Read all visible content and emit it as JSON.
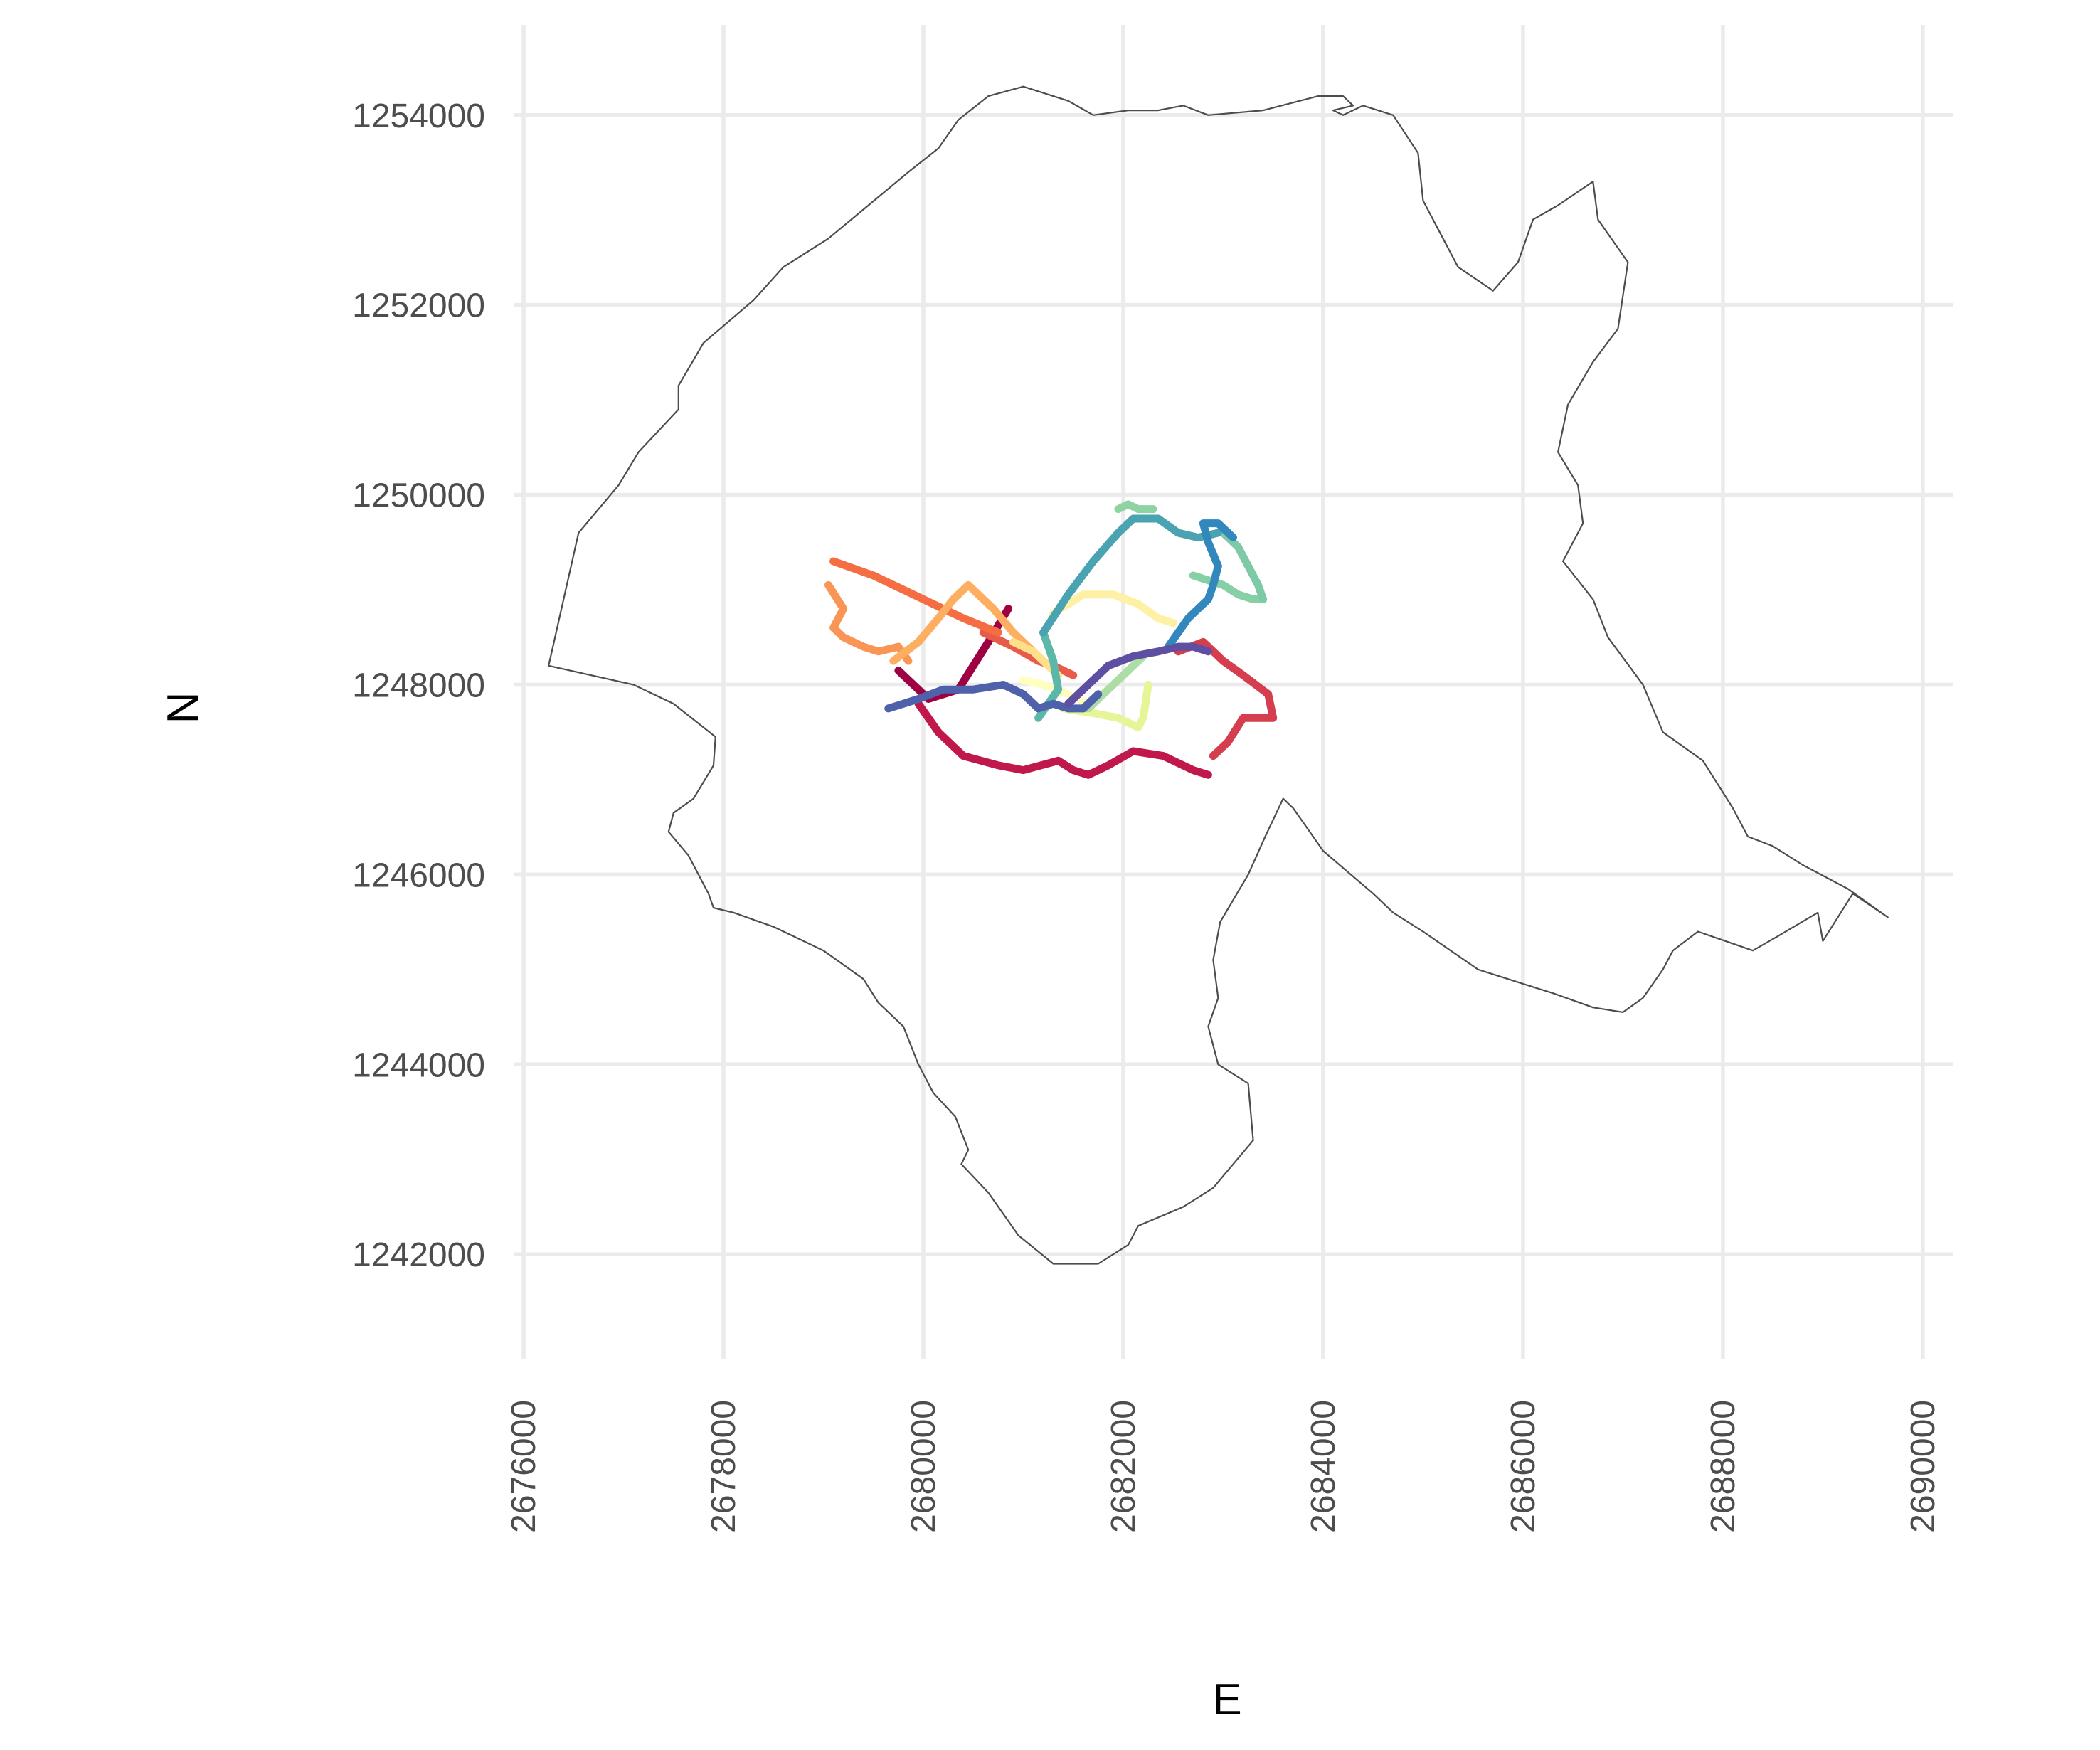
{
  "chart_data": {
    "type": "line",
    "title": "",
    "xlabel": "E",
    "ylabel": "N",
    "xlim": [
      2675900,
      2690300
    ],
    "ylim": [
      1240900,
      1254950
    ],
    "grid": true,
    "x_ticks": [
      2676000,
      2678000,
      2680000,
      2682000,
      2684000,
      2686000,
      2688000,
      2690000
    ],
    "y_ticks": [
      1242000,
      1244000,
      1246000,
      1248000,
      1250000,
      1252000,
      1254000
    ],
    "x_tick_labels": [
      "2676000",
      "2678000",
      "2680000",
      "2682000",
      "2684000",
      "2686000",
      "2688000",
      "2690000"
    ],
    "y_tick_labels": [
      "1242000",
      "1244000",
      "1246000",
      "1248000",
      "1250000",
      "1252000",
      "1254000"
    ],
    "boundary": {
      "color": "#4d4d4d",
      "x": [
        2676250,
        2677100,
        2677500,
        2677920,
        2677900,
        2677700,
        2677500,
        2677450,
        2677650,
        2677850,
        2677900,
        2678100,
        2678500,
        2679000,
        2679400,
        2679550,
        2679800,
        2679950,
        2680100,
        2680320,
        2680450,
        2680380,
        2680650,
        2680950,
        2681300,
        2681750,
        2682050,
        2682150,
        2682600,
        2682900,
        2683100,
        2683300,
        2683250,
        2682950,
        2682850,
        2682950,
        2682900,
        2682970,
        2683250,
        2683420,
        2683600,
        2683700,
        2684000,
        2684500,
        2684700,
        2685000,
        2685550,
        2686000,
        2686300,
        2686700,
        2687000,
        2687200,
        2687400,
        2687500,
        2687750,
        2688300,
        2688550,
        2688950,
        2689000,
        2689300,
        2689650,
        2689250,
        2688800,
        2688500,
        2688250,
        2688100,
        2687800,
        2687400,
        2687200,
        2686850,
        2686700,
        2686400,
        2686600,
        2686550,
        2686350,
        2686450,
        2686700,
        2686950,
        2687050,
        2686750,
        2686700,
        2686350,
        2686100,
        2685950,
        2685700,
        2685350,
        2685200,
        2685000,
        2684950,
        2684700,
        2684400,
        2684200,
        2684100,
        2684300,
        2684200,
        2683950,
        2683400,
        2682850,
        2682600,
        2682350,
        2682050,
        2681700,
        2681450,
        2681000,
        2680650,
        2680350,
        2680150,
        2679850,
        2679450,
        2679050,
        2678600,
        2678300,
        2677800,
        2677550,
        2677550,
        2677150,
        2676950,
        2676550,
        2676250
      ],
      "y": [
        1248200,
        1248000,
        1247800,
        1247450,
        1247150,
        1246800,
        1246650,
        1246450,
        1246200,
        1245800,
        1245650,
        1245600,
        1245450,
        1245200,
        1244900,
        1244650,
        1244400,
        1244000,
        1243700,
        1243450,
        1243100,
        1242950,
        1242650,
        1242200,
        1241900,
        1241900,
        1242100,
        1242300,
        1242500,
        1242700,
        1242950,
        1243200,
        1243800,
        1244000,
        1244400,
        1244700,
        1245100,
        1245500,
        1246000,
        1246400,
        1246800,
        1246700,
        1246250,
        1245800,
        1245600,
        1245400,
        1245000,
        1244850,
        1244750,
        1244600,
        1244550,
        1244700,
        1245000,
        1245200,
        1245400,
        1245200,
        1245350,
        1245600,
        1245300,
        1245800,
        1245550,
        1245850,
        1246100,
        1246300,
        1246400,
        1246700,
        1247200,
        1247500,
        1248000,
        1248500,
        1248900,
        1249300,
        1249700,
        1250100,
        1250450,
        1250950,
        1251400,
        1251750,
        1252450,
        1252900,
        1253300,
        1253050,
        1252900,
        1252450,
        1252150,
        1252400,
        1252700,
        1253100,
        1253600,
        1254000,
        1254100,
        1254000,
        1254050,
        1254100,
        1254200,
        1254200,
        1254050,
        1254000,
        1254100,
        1254050,
        1254050,
        1254000,
        1254150,
        1254300,
        1254200,
        1253950,
        1253650,
        1253400,
        1253050,
        1252700,
        1252400,
        1252050,
        1251600,
        1251150,
        1250900,
        1250450,
        1250100,
        1249600,
        1248200
      ]
    },
    "series": [
      {
        "color": "#9e0142",
        "x": [
          2679750,
          2680050,
          2680350,
          2680500,
          2680650,
          2680850
        ],
        "y": [
          1248150,
          1247850,
          1247950,
          1248200,
          1248450,
          1248800
        ]
      },
      {
        "color": "#c0184a",
        "x": [
          2679950,
          2680150,
          2680400,
          2680750,
          2681000,
          2681350,
          2681500,
          2681650,
          2681850,
          2682100,
          2682400,
          2682700,
          2682850
        ],
        "y": [
          1247800,
          1247500,
          1247250,
          1247150,
          1247100,
          1247200,
          1247100,
          1247050,
          1247150,
          1247300,
          1247250,
          1247100,
          1247050
        ]
      },
      {
        "color": "#d53e4f",
        "x": [
          2682550,
          2682800,
          2683000,
          2683200,
          2683450,
          2683500,
          2683200,
          2683050,
          2682900
        ],
        "y": [
          1248350,
          1248450,
          1248250,
          1248100,
          1247900,
          1247650,
          1247650,
          1247400,
          1247250
        ]
      },
      {
        "color": "#e85b4a",
        "x": [
          2680600,
          2680900,
          2681150,
          2681300,
          2681500
        ],
        "y": [
          1248550,
          1248400,
          1248250,
          1248200,
          1248100
        ]
      },
      {
        "color": "#f46d43",
        "x": [
          2679100,
          2679500,
          2679800,
          2680100,
          2680400,
          2680750
        ],
        "y": [
          1249300,
          1249150,
          1249000,
          1248850,
          1248700,
          1248550
        ]
      },
      {
        "color": "#f99655",
        "x": [
          2679050,
          2679200,
          2679100,
          2679200,
          2679400,
          2679550,
          2679750,
          2679850
        ],
        "y": [
          1249050,
          1248800,
          1248600,
          1248500,
          1248400,
          1248350,
          1248400,
          1248250
        ]
      },
      {
        "color": "#fdae61",
        "x": [
          2679700,
          2679950,
          2680150,
          2680300,
          2680450,
          2680700,
          2680900,
          2681100
        ],
        "y": [
          1248250,
          1248450,
          1248700,
          1248900,
          1249050,
          1248800,
          1248550,
          1248350
        ]
      },
      {
        "color": "#fee08b",
        "x": [
          2680900,
          2681100,
          2681250,
          2681350
        ],
        "y": [
          1248450,
          1248350,
          1248200,
          1248100
        ]
      },
      {
        "color": "#fef0a5",
        "x": [
          2681300,
          2681600,
          2681900,
          2682150,
          2682350,
          2682500
        ],
        "y": [
          1248750,
          1248950,
          1248950,
          1248850,
          1248700,
          1248650
        ]
      },
      {
        "color": "#ffffbf",
        "x": [
          2681000,
          2681200,
          2681450,
          2681650
        ],
        "y": [
          1248050,
          1248000,
          1247900,
          1247800
        ]
      },
      {
        "color": "#e6f598",
        "x": [
          2681400,
          2681700,
          2681950,
          2682150,
          2682200,
          2682250
        ],
        "y": [
          1247750,
          1247700,
          1247650,
          1247550,
          1247650,
          1248000
        ]
      },
      {
        "color": "#abdda4",
        "x": [
          2681650,
          2681850,
          2682050,
          2682200
        ],
        "y": [
          1247750,
          1247950,
          1248150,
          1248300
        ]
      },
      {
        "color": "#87cfa4",
        "x": [
          2682700,
          2683000,
          2683150,
          2683300,
          2683400
        ],
        "y": [
          1249150,
          1249050,
          1248950,
          1248900,
          1248900
        ]
      },
      {
        "color": "#8fd3a3",
        "x": [
          2681950,
          2682050,
          2682150,
          2682300
        ],
        "y": [
          1249850,
          1249900,
          1249850,
          1249850
        ]
      },
      {
        "color": "#7fcaa6",
        "x": [
          2683000,
          2683150,
          2683250,
          2683350,
          2683400
        ],
        "y": [
          1249600,
          1249450,
          1249250,
          1249050,
          1248900
        ]
      },
      {
        "color": "#5bb8a9",
        "x": [
          2681200,
          2681300,
          2681350,
          2681250,
          2681150
        ],
        "y": [
          1248550,
          1248250,
          1247950,
          1247800,
          1247650
        ]
      },
      {
        "color": "#4aa3b0",
        "x": [
          2681200,
          2681450,
          2681700,
          2681950,
          2682100,
          2682350,
          2682550,
          2682750,
          2682950
        ],
        "y": [
          1248550,
          1248950,
          1249300,
          1249600,
          1249750,
          1249750,
          1249600,
          1249550,
          1249600
        ]
      },
      {
        "color": "#3288bd",
        "x": [
          2682450,
          2682650,
          2682850,
          2682900,
          2682950,
          2682850,
          2682800,
          2682950,
          2683100
        ],
        "y": [
          1248400,
          1248700,
          1248900,
          1249050,
          1249250,
          1249500,
          1249700,
          1249700,
          1249550
        ]
      },
      {
        "color": "#4f61aa",
        "x": [
          2679650,
          2679800,
          2679950,
          2680200,
          2680500,
          2680800,
          2681000,
          2681150,
          2681300,
          2681450,
          2681600,
          2681750
        ],
        "y": [
          1247750,
          1247800,
          1247850,
          1247950,
          1247950,
          1248000,
          1247900,
          1247750,
          1247800,
          1247750,
          1247750,
          1247900
        ]
      },
      {
        "color": "#5e4fa2",
        "x": [
          2681450,
          2681650,
          2681850,
          2682100,
          2682350,
          2682550,
          2682700,
          2682850
        ],
        "y": [
          1247800,
          1248000,
          1248200,
          1248300,
          1248350,
          1248400,
          1248400,
          1248350
        ]
      }
    ]
  }
}
